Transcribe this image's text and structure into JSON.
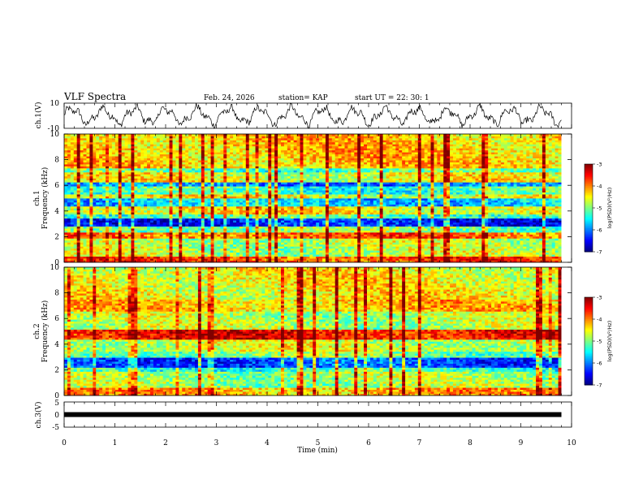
{
  "header": {
    "title": "VLF Spectra",
    "date": "Feb. 24, 2026",
    "station": "station= KAP",
    "start_time": "start  UT =   22: 30: 1"
  },
  "chart_data": [
    {
      "type": "line",
      "name": "ch1-waveform",
      "ylabel": "ch.1(V)",
      "ylim": [
        -10,
        10
      ],
      "y_tick_labels": [
        "10",
        "-10"
      ],
      "xlim": [
        0,
        10
      ],
      "description_units": "V"
    },
    {
      "type": "heatmap",
      "name": "ch1-spectrogram",
      "ylabel": "ch.1\nFrequency (kHz)",
      "ylabel_lines": [
        "ch.1",
        "Frequency (kHz)"
      ],
      "ylim": [
        0,
        10
      ],
      "y_tick_labels": [
        "0",
        "2",
        "4",
        "6",
        "8",
        "10"
      ],
      "xlim": [
        0,
        9.8
      ],
      "colorbar": {
        "label": "log(PSD)(V²/Hz)",
        "range": [
          -7,
          -3
        ],
        "tick_labels": [
          "-3",
          "-4",
          "-5",
          "-6",
          "-7"
        ]
      },
      "bands": [
        {
          "from": 0,
          "to": 0.5,
          "level": -3.8
        },
        {
          "from": 0.5,
          "to": 1.8,
          "level": -4.8
        },
        {
          "from": 1.8,
          "to": 2.3,
          "level": -3.9
        },
        {
          "from": 2.3,
          "to": 2.8,
          "level": -5.0
        },
        {
          "from": 2.8,
          "to": 3.4,
          "level": -6.4
        },
        {
          "from": 3.4,
          "to": 3.7,
          "level": -5.2
        },
        {
          "from": 3.7,
          "to": 4.3,
          "level": -4.5
        },
        {
          "from": 4.3,
          "to": 5.0,
          "level": -5.7
        },
        {
          "from": 5.0,
          "to": 5.3,
          "level": -4.6
        },
        {
          "from": 5.3,
          "to": 5.9,
          "level": -5.3
        },
        {
          "from": 5.9,
          "to": 6.2,
          "level": -6.0
        },
        {
          "from": 6.2,
          "to": 7.0,
          "level": -4.6
        },
        {
          "from": 7.0,
          "to": 7.4,
          "level": -5.2
        },
        {
          "from": 7.4,
          "to": 10.0,
          "level": -4.3
        }
      ]
    },
    {
      "type": "heatmap",
      "name": "ch2-spectrogram",
      "ylabel": "ch.2\nFrequency (kHz)",
      "ylabel_lines": [
        "ch.2",
        "Frequency (kHz)"
      ],
      "ylim": [
        0,
        10
      ],
      "y_tick_labels": [
        "0",
        "2",
        "4",
        "6",
        "8",
        "10"
      ],
      "xlim": [
        0,
        9.8
      ],
      "colorbar": {
        "label": "log(PSD)(V²/Hz)",
        "range": [
          -7,
          -3
        ],
        "tick_labels": [
          "-3",
          "-4",
          "-5",
          "-6",
          "-7"
        ]
      },
      "bands": [
        {
          "from": 0,
          "to": 0.6,
          "level": -4.2
        },
        {
          "from": 0.6,
          "to": 1.8,
          "level": -4.9
        },
        {
          "from": 1.8,
          "to": 2.2,
          "level": -5.3
        },
        {
          "from": 2.2,
          "to": 3.0,
          "level": -6.2
        },
        {
          "from": 3.0,
          "to": 3.5,
          "level": -5.0
        },
        {
          "from": 3.5,
          "to": 4.4,
          "level": -4.7
        },
        {
          "from": 4.4,
          "to": 5.1,
          "level": -3.5
        },
        {
          "from": 5.1,
          "to": 6.5,
          "level": -4.8
        },
        {
          "from": 6.5,
          "to": 7.5,
          "level": -4.3
        },
        {
          "from": 7.5,
          "to": 10.0,
          "level": -4.5
        }
      ]
    },
    {
      "type": "line",
      "name": "ch3-signal",
      "ylabel": "ch.3(V)",
      "ylim": [
        -5,
        5
      ],
      "y_tick_labels": [
        "5",
        "0",
        "-5"
      ],
      "xlim": [
        0,
        10
      ],
      "x": [
        0,
        9.8
      ],
      "y": [
        0,
        0
      ],
      "xlabel": "Time  (min)",
      "x_tick_labels": [
        "0",
        "1",
        "2",
        "3",
        "4",
        "5",
        "6",
        "7",
        "8",
        "9",
        "10"
      ]
    }
  ]
}
